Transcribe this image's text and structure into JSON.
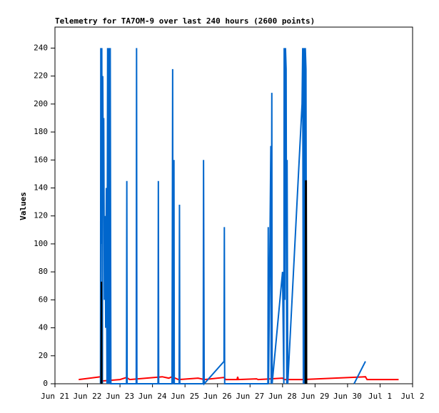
{
  "chart_data": {
    "type": "line",
    "title": "Telemetry for TA7OM-9 over last 240 hours (2600 points)",
    "y_label": "Values",
    "xlim": [
      0,
      11
    ],
    "xticks": [
      {
        "value": 0,
        "label": "Jun 21"
      },
      {
        "value": 1,
        "label": "Jun 22"
      },
      {
        "value": 2,
        "label": "Jun 23"
      },
      {
        "value": 3,
        "label": "Jun 24"
      },
      {
        "value": 4,
        "label": "Jun 25"
      },
      {
        "value": 5,
        "label": "Jun 26"
      },
      {
        "value": 6,
        "label": "Jun 27"
      },
      {
        "value": 7,
        "label": "Jun 28"
      },
      {
        "value": 8,
        "label": "Jun 29"
      },
      {
        "value": 9,
        "label": "Jun 30"
      },
      {
        "value": 10,
        "label": "Jul 1"
      },
      {
        "value": 11,
        "label": "Jul 2"
      }
    ],
    "ylim": [
      0,
      255
    ],
    "yticks": [
      0,
      20,
      40,
      60,
      80,
      100,
      120,
      140,
      160,
      180,
      200,
      220,
      240
    ],
    "grid": false,
    "series": [
      {
        "color": "#ff0000",
        "x": [
          0.73,
          1.4,
          1.45,
          2.0,
          2.2,
          2.3,
          3.3,
          3.5,
          3.6,
          3.8,
          4.4,
          4.6,
          5.2,
          5.25,
          5.6,
          5.62,
          5.64,
          6.2,
          6.25,
          7.0,
          7.05,
          7.6,
          9.55,
          9.6,
          10.57
        ],
        "values": [
          3,
          5,
          2,
          3,
          4.5,
          3,
          5,
          4,
          5,
          3,
          4,
          3,
          4.5,
          3,
          3,
          5,
          3,
          3.5,
          3,
          4,
          3,
          3,
          5,
          3,
          3
        ]
      },
      {
        "color": "#0066cc",
        "x": [
          1.4,
          1.41,
          1.43,
          1.44,
          1.46,
          1.47,
          1.49,
          1.5,
          1.52,
          1.54,
          1.56,
          1.58,
          1.6,
          1.62,
          1.64,
          1.66,
          1.68,
          1.7,
          1.72,
          2.2,
          2.21,
          2.22,
          2.5,
          2.51,
          2.52,
          3.17,
          3.18,
          3.19,
          3.6,
          3.61,
          3.62,
          3.63,
          3.66,
          3.67,
          3.82,
          3.83,
          3.84,
          4.56,
          4.57,
          4.58,
          4.59,
          5.2,
          5.21,
          5.22,
          6.55,
          6.56,
          6.57,
          6.64,
          6.65,
          6.67,
          6.68,
          7.0,
          7.04,
          7.05,
          7.07,
          7.09,
          7.11,
          7.13,
          7.14,
          7.16,
          7.6,
          7.62,
          7.64,
          7.66,
          7.68,
          7.7,
          7.72,
          7.74,
          7.75,
          9.2,
          9.55
        ],
        "values": [
          0,
          240,
          100,
          240,
          0,
          220,
          130,
          190,
          60,
          120,
          40,
          140,
          0,
          240,
          0,
          240,
          0,
          240,
          0,
          0,
          145,
          0,
          0,
          240,
          0,
          0,
          145,
          0,
          0,
          97,
          225,
          0,
          160,
          0,
          0,
          128,
          0,
          0,
          160,
          80,
          0,
          16,
          112,
          0,
          0,
          112,
          0,
          170,
          0,
          208,
          0,
          80,
          0,
          240,
          60,
          240,
          225,
          0,
          160,
          0,
          200,
          240,
          0,
          240,
          0,
          240,
          225,
          0,
          null,
          0,
          16
        ]
      },
      {
        "color": "#000000",
        "x": [
          1.42,
          1.43,
          1.44,
          1.45,
          7.7,
          7.71,
          7.73,
          7.74
        ],
        "values": [
          0,
          73,
          0,
          null,
          0,
          145,
          145,
          0
        ]
      }
    ]
  }
}
